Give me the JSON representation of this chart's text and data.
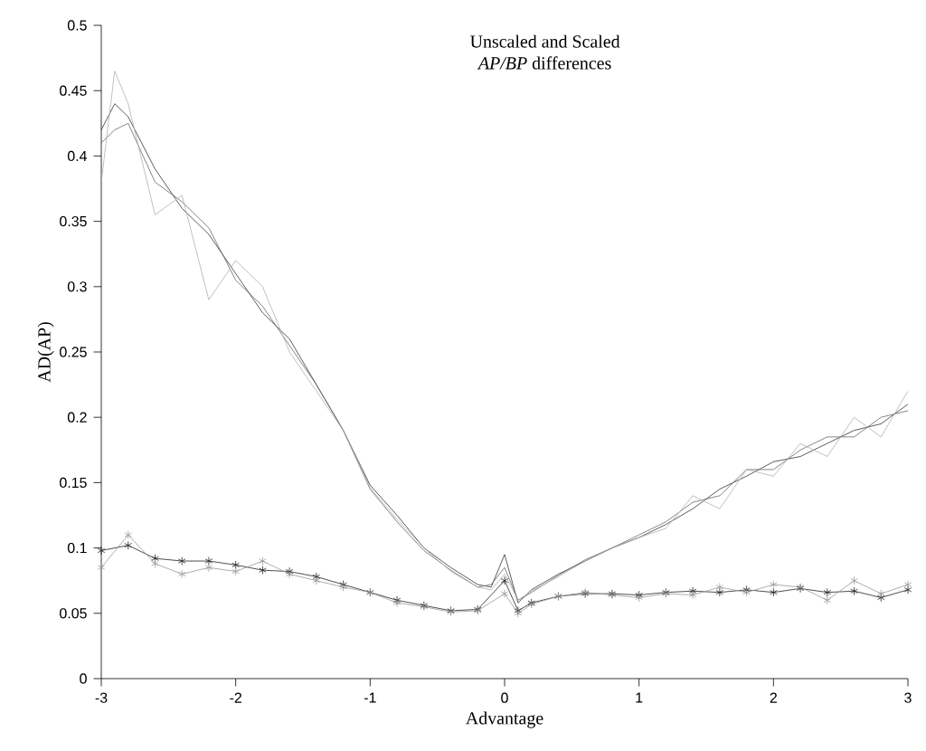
{
  "chart_data": {
    "type": "line",
    "title": "Unscaled and Scaled",
    "subtitle": "*AP/BP* differences",
    "xlabel": "Advantage",
    "ylabel": "AD(AP)",
    "xlim": [
      -3,
      3
    ],
    "ylim": [
      0,
      0.5
    ],
    "xticks": [
      -3,
      -2,
      -1,
      0,
      1,
      2,
      3
    ],
    "yticks": [
      0,
      0.05,
      0.1,
      0.15,
      0.2,
      0.25,
      0.3,
      0.35,
      0.4,
      0.45,
      0.5
    ],
    "grid": false,
    "line_style": "solid",
    "series": [
      {
        "color": "#333333",
        "marker": "none",
        "x": [
          -3,
          -2.9,
          -2.8,
          -2.6,
          -2.4,
          -2.2,
          -2.0,
          -1.8,
          -1.6,
          -1.4,
          -1.2,
          -1.0,
          -0.8,
          -0.6,
          -0.4,
          -0.2,
          -0.1,
          0,
          0.1,
          0.2,
          0.4,
          0.6,
          0.8,
          1.0,
          1.2,
          1.4,
          1.6,
          1.8,
          2.0,
          2.2,
          2.4,
          2.6,
          2.8,
          3.0
        ],
        "values": [
          0.42,
          0.44,
          0.43,
          0.39,
          0.36,
          0.34,
          0.31,
          0.28,
          0.26,
          0.225,
          0.19,
          0.148,
          0.125,
          0.1,
          0.085,
          0.072,
          0.07,
          0.095,
          0.058,
          0.068,
          0.08,
          0.09,
          0.1,
          0.108,
          0.118,
          0.13,
          0.145,
          0.155,
          0.166,
          0.17,
          0.18,
          0.19,
          0.195,
          0.21
        ]
      },
      {
        "color": "#666666",
        "marker": "none",
        "x": [
          -3,
          -2.9,
          -2.8,
          -2.6,
          -2.4,
          -2.2,
          -2.0,
          -1.8,
          -1.6,
          -1.4,
          -1.2,
          -1.0,
          -0.8,
          -0.6,
          -0.4,
          -0.2,
          -0.1,
          0,
          0.1,
          0.2,
          0.4,
          0.6,
          0.8,
          1.0,
          1.2,
          1.4,
          1.6,
          1.8,
          2.0,
          2.2,
          2.4,
          2.6,
          2.8,
          3.0
        ],
        "values": [
          0.41,
          0.42,
          0.425,
          0.38,
          0.365,
          0.345,
          0.305,
          0.285,
          0.255,
          0.225,
          0.19,
          0.145,
          0.12,
          0.098,
          0.083,
          0.07,
          0.072,
          0.085,
          0.06,
          0.066,
          0.079,
          0.091,
          0.1,
          0.11,
          0.12,
          0.135,
          0.14,
          0.16,
          0.16,
          0.175,
          0.185,
          0.185,
          0.2,
          0.205
        ]
      },
      {
        "color": "#b0b0b0",
        "marker": "none",
        "x": [
          -3,
          -2.9,
          -2.8,
          -2.6,
          -2.4,
          -2.2,
          -2.0,
          -1.8,
          -1.6,
          -1.4,
          -1.2,
          -1.0,
          -0.8,
          -0.6,
          -0.4,
          -0.2,
          -0.1,
          0,
          0.1,
          0.2,
          0.4,
          0.6,
          0.8,
          1.0,
          1.2,
          1.4,
          1.6,
          1.8,
          2.0,
          2.2,
          2.4,
          2.6,
          2.8,
          3.0
        ],
        "values": [
          0.38,
          0.465,
          0.44,
          0.355,
          0.37,
          0.29,
          0.32,
          0.3,
          0.25,
          0.22,
          0.19,
          0.146,
          0.122,
          0.1,
          0.082,
          0.07,
          0.068,
          0.08,
          0.06,
          0.067,
          0.078,
          0.09,
          0.1,
          0.108,
          0.115,
          0.14,
          0.13,
          0.16,
          0.155,
          0.18,
          0.17,
          0.2,
          0.185,
          0.22
        ]
      },
      {
        "color": "#222222",
        "marker": "cross",
        "x": [
          -3,
          -2.8,
          -2.6,
          -2.4,
          -2.2,
          -2,
          -1.8,
          -1.6,
          -1.4,
          -1.2,
          -1,
          -0.8,
          -0.6,
          -0.4,
          -0.2,
          0,
          0.1,
          0.2,
          0.4,
          0.6,
          0.8,
          1,
          1.2,
          1.4,
          1.6,
          1.8,
          2,
          2.2,
          2.4,
          2.6,
          2.8,
          3
        ],
        "values": [
          0.098,
          0.102,
          0.092,
          0.09,
          0.09,
          0.087,
          0.083,
          0.082,
          0.078,
          0.072,
          0.066,
          0.06,
          0.056,
          0.052,
          0.053,
          0.075,
          0.052,
          0.058,
          0.063,
          0.065,
          0.065,
          0.064,
          0.066,
          0.067,
          0.066,
          0.068,
          0.066,
          0.069,
          0.066,
          0.067,
          0.062,
          0.068
        ]
      },
      {
        "color": "#999999",
        "marker": "cross",
        "x": [
          -3,
          -2.8,
          -2.6,
          -2.4,
          -2.2,
          -2,
          -1.8,
          -1.6,
          -1.4,
          -1.2,
          -1,
          -0.8,
          -0.6,
          -0.4,
          -0.2,
          0,
          0.1,
          0.2,
          0.4,
          0.6,
          0.8,
          1,
          1.2,
          1.4,
          1.6,
          1.8,
          2,
          2.2,
          2.4,
          2.6,
          2.8,
          3
        ],
        "values": [
          0.085,
          0.11,
          0.088,
          0.08,
          0.085,
          0.082,
          0.09,
          0.08,
          0.075,
          0.07,
          0.066,
          0.058,
          0.055,
          0.051,
          0.052,
          0.065,
          0.05,
          0.057,
          0.063,
          0.066,
          0.064,
          0.062,
          0.065,
          0.064,
          0.07,
          0.066,
          0.072,
          0.07,
          0.06,
          0.075,
          0.065,
          0.072
        ]
      }
    ]
  }
}
